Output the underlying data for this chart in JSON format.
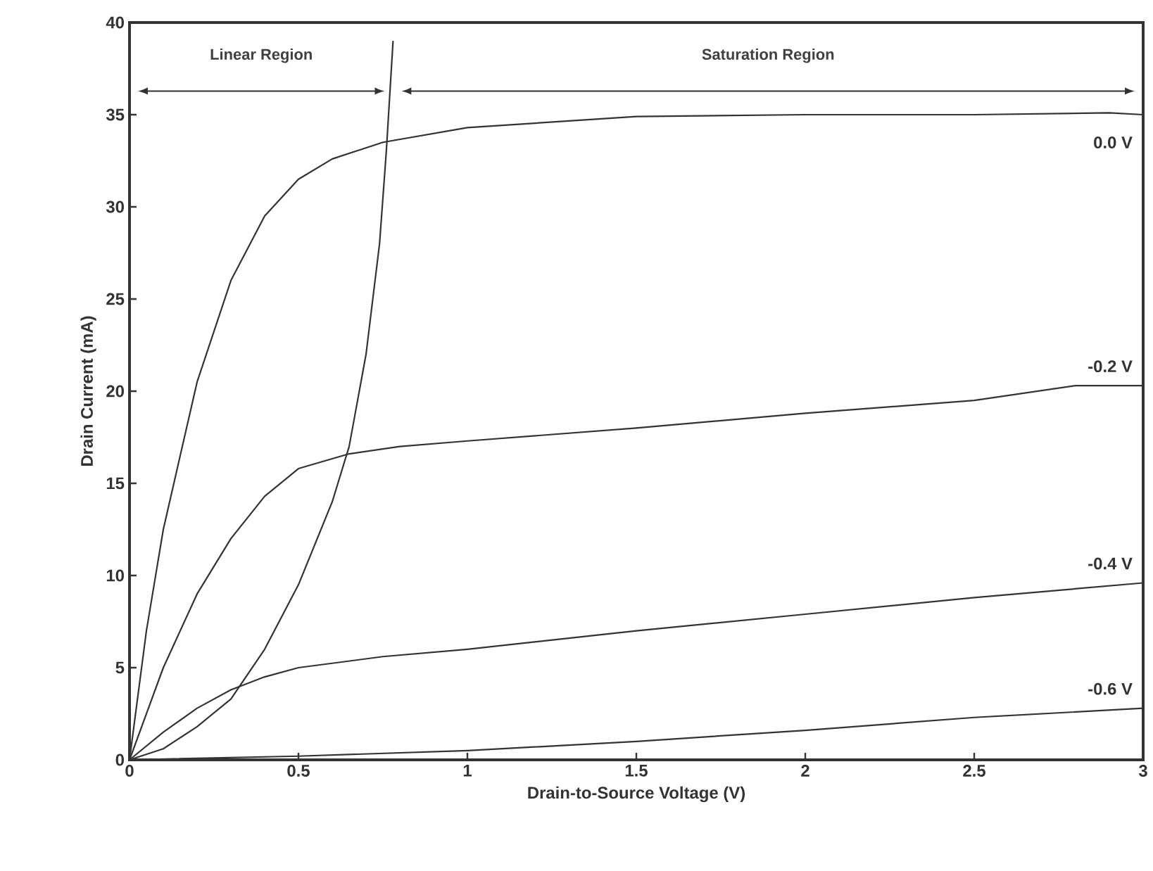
{
  "chart_data": {
    "type": "line",
    "xlabel": "Drain-to-Source Voltage (V)",
    "ylabel": "Drain Current (mA)",
    "xlim": [
      0,
      3
    ],
    "ylim": [
      0,
      40
    ],
    "xticks": [
      0,
      0.5,
      1,
      1.5,
      2,
      2.5,
      3
    ],
    "yticks": [
      0,
      5,
      10,
      15,
      20,
      25,
      30,
      35,
      40
    ],
    "grid": false,
    "line_style": "solid",
    "marker": "none",
    "series": [
      {
        "name": "0.0 V",
        "color": "#333333",
        "x": [
          0,
          0.05,
          0.1,
          0.2,
          0.3,
          0.4,
          0.5,
          0.6,
          0.75,
          1.0,
          1.5,
          2.0,
          2.5,
          2.9,
          3.0
        ],
        "values": [
          0,
          7,
          12.5,
          20.5,
          26,
          29.5,
          31.5,
          32.6,
          33.5,
          34.3,
          34.9,
          35,
          35,
          35.1,
          35
        ]
      },
      {
        "name": "-0.2 V",
        "color": "#333333",
        "x": [
          0,
          0.1,
          0.2,
          0.3,
          0.4,
          0.5,
          0.65,
          0.8,
          1.0,
          1.5,
          2.0,
          2.5,
          2.8,
          3.0
        ],
        "values": [
          0,
          5,
          9,
          12,
          14.3,
          15.8,
          16.6,
          17,
          17.3,
          18,
          18.8,
          19.5,
          20.3,
          20.3
        ]
      },
      {
        "name": "-0.4 V",
        "color": "#333333",
        "x": [
          0,
          0.1,
          0.2,
          0.3,
          0.4,
          0.5,
          0.75,
          1.0,
          1.5,
          2.0,
          2.5,
          3.0
        ],
        "values": [
          0,
          1.5,
          2.8,
          3.8,
          4.5,
          5,
          5.6,
          6,
          7,
          7.9,
          8.8,
          9.6
        ]
      },
      {
        "name": "-0.6 V",
        "color": "#333333",
        "x": [
          0,
          0.5,
          1.0,
          1.5,
          2.0,
          2.5,
          3.0
        ],
        "values": [
          0,
          0.2,
          0.5,
          1,
          1.6,
          2.3,
          2.8
        ]
      },
      {
        "color": "#333333",
        "x": [
          0,
          0.1,
          0.2,
          0.3,
          0.4,
          0.5,
          0.6,
          0.65,
          0.7,
          0.74,
          0.76,
          0.77,
          0.78
        ],
        "values": [
          0,
          0.6,
          1.8,
          3.3,
          6,
          9.5,
          14,
          17,
          22,
          28,
          33,
          36,
          39
        ]
      }
    ],
    "annotations": [
      "Linear Region",
      "Saturation Region"
    ]
  }
}
